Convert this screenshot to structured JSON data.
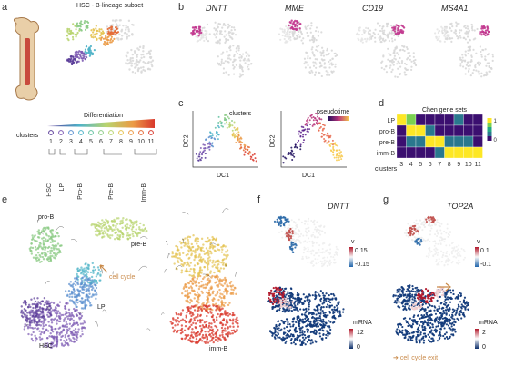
{
  "panels": {
    "a": {
      "label": "a",
      "title": "HSC - B-lineage subset",
      "differentiation_label": "Differentiation",
      "clusters_label": "clusters",
      "cluster_numbers": [
        "1",
        "2",
        "3",
        "4",
        "5",
        "6",
        "7",
        "8",
        "9",
        "10",
        "11"
      ],
      "cluster_colors": [
        "#5b3d99",
        "#7d5bb3",
        "#5a8fce",
        "#4fb3c8",
        "#63c1a0",
        "#8ccb86",
        "#b8d46f",
        "#e4c24f",
        "#eb9a45",
        "#e46a35",
        "#d9382c"
      ],
      "stage_labels": [
        "HSC",
        "LP",
        "Pro-B",
        "Pre-B",
        "Imm-B"
      ]
    },
    "b": {
      "label": "b",
      "genes": [
        "DNTT",
        "MME",
        "CD19",
        "MS4A1"
      ]
    },
    "c": {
      "label": "c",
      "left_legend": "clusters",
      "right_legend": "pseudotime",
      "x_label": "DC1",
      "y_label": "DC2"
    },
    "d": {
      "label": "d",
      "title": "Chen gene sets",
      "rows": [
        "LP",
        "pro-B",
        "pre-B",
        "imm-B"
      ],
      "cols": [
        "3",
        "4",
        "5",
        "6",
        "7",
        "8",
        "9",
        "10",
        "11"
      ],
      "x_label": "clusters",
      "legend_top": "1",
      "legend_bottom": "0"
    },
    "e": {
      "label": "e",
      "annotations": [
        "pro-B",
        "pre-B",
        "cell cycle",
        "LP",
        "HSC",
        "imm-B"
      ],
      "arrow_color": "#c98a4a"
    },
    "f": {
      "label": "f",
      "gene": "DNTT",
      "v_label": "v",
      "v_max": "0.15",
      "v_min": "-0.15",
      "mrna_label": "mRNA",
      "mrna_max": "12",
      "mrna_min": "0"
    },
    "g": {
      "label": "g",
      "gene": "TOP2A",
      "v_label": "v",
      "v_max": "0.1",
      "v_min": "-0.1",
      "mrna_label": "mRNA",
      "mrna_max": "2",
      "mrna_min": "0",
      "annotation": "cell cycle exit"
    }
  },
  "chart_data": {
    "type": "heatmap",
    "title": "Chen gene sets",
    "rows": [
      "LP",
      "pro-B",
      "pre-B",
      "imm-B"
    ],
    "cols": [
      "3",
      "4",
      "5",
      "6",
      "7",
      "8",
      "9",
      "10",
      "11"
    ],
    "values": [
      [
        1.0,
        0.85,
        0.1,
        0.05,
        0.1,
        0.1,
        0.15,
        0.1,
        0.1
      ],
      [
        0.1,
        0.9,
        0.95,
        0.2,
        0.1,
        0.1,
        0.05,
        0.1,
        0.05
      ],
      [
        0.05,
        0.15,
        0.2,
        0.95,
        0.9,
        0.3,
        0.2,
        0.15,
        0.1
      ],
      [
        0.05,
        0.05,
        0.1,
        0.1,
        0.3,
        0.9,
        1.0,
        0.9,
        0.95
      ]
    ],
    "color_scale": [
      "#3b0f70",
      "#2a788e",
      "#22a884",
      "#7ad151",
      "#fde725"
    ],
    "legend_max": "1",
    "legend_min": "0",
    "xlabel": "clusters"
  }
}
